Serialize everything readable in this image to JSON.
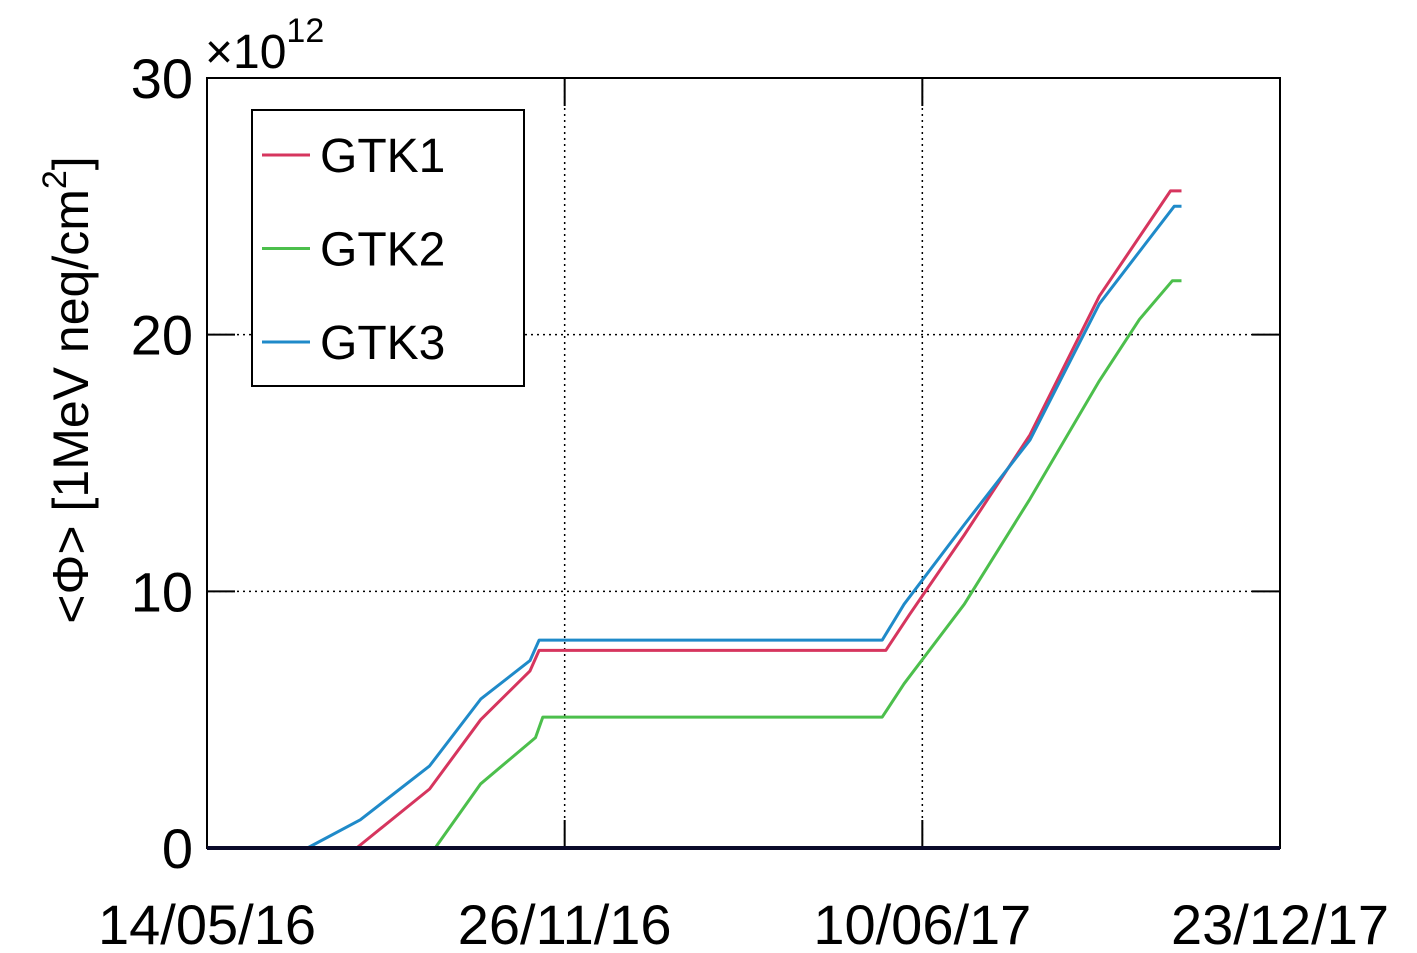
{
  "chart_data": {
    "type": "line",
    "ylabel": {
      "main": "<Φ> [1MeV neq/cm",
      "sup": "2",
      "end": "]"
    },
    "y_multiplier": {
      "base": "×10",
      "exponent": "12"
    },
    "xlim": [
      "2016-05-14",
      "2017-12-23"
    ],
    "xticks": [
      {
        "value": "2016-05-14",
        "label": "14/05/16"
      },
      {
        "value": "2016-11-26",
        "label": "26/11/16"
      },
      {
        "value": "2017-06-10",
        "label": "10/06/17"
      },
      {
        "value": "2017-12-23",
        "label": "23/12/17"
      }
    ],
    "ylim": [
      0,
      30
    ],
    "yticks": [
      0,
      10,
      20,
      30
    ],
    "grid": true,
    "legend": "top-left",
    "series": [
      {
        "name": "GTK1",
        "color": "#d6355e",
        "x": [
          "2016-08-04",
          "2016-09-13",
          "2016-10-11",
          "2016-11-07",
          "2016-11-12",
          "2017-05-21",
          "2017-06-03",
          "2017-07-03",
          "2017-08-08",
          "2017-09-15",
          "2017-10-24",
          "2017-10-30"
        ],
        "values": [
          0,
          2.3,
          5.0,
          6.9,
          7.7,
          7.7,
          9.1,
          12.2,
          16.1,
          21.5,
          25.6,
          25.6
        ]
      },
      {
        "name": "GTK2",
        "color": "#4cbf4c",
        "x": [
          "2016-09-16",
          "2016-10-11",
          "2016-11-10",
          "2016-11-14",
          "2017-05-19",
          "2017-05-31",
          "2017-07-03",
          "2017-08-08",
          "2017-09-15",
          "2017-10-07",
          "2017-10-25",
          "2017-10-30"
        ],
        "values": [
          0,
          2.5,
          4.3,
          5.1,
          5.1,
          6.4,
          9.5,
          13.6,
          18.2,
          20.6,
          22.1,
          22.1
        ]
      },
      {
        "name": "GTK3",
        "color": "#1f8ac9",
        "x": [
          "2016-07-08",
          "2016-08-06",
          "2016-09-13",
          "2016-10-11",
          "2016-11-07",
          "2016-11-12",
          "2017-05-19",
          "2017-05-31",
          "2017-07-03",
          "2017-08-08",
          "2017-09-15",
          "2017-10-26",
          "2017-10-30"
        ],
        "values": [
          0,
          1.1,
          3.2,
          5.8,
          7.3,
          8.1,
          8.1,
          9.5,
          12.6,
          15.9,
          21.2,
          25.0,
          25.0
        ]
      }
    ]
  }
}
